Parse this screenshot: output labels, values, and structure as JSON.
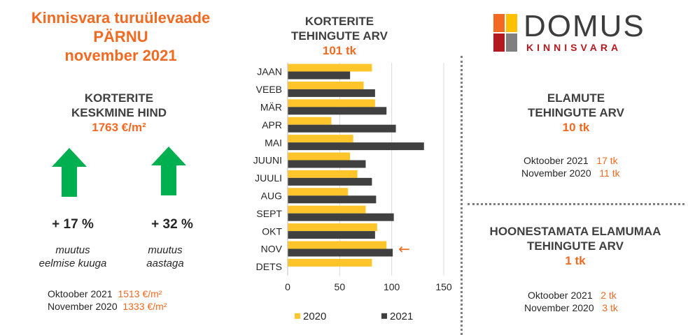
{
  "header": {
    "title_line1": "Kinnisvara turuülevaade",
    "title_line2": "PÄRNU",
    "title_line3": "november 2021"
  },
  "avg_price": {
    "title_line1": "KORTERITE",
    "title_line2": "KESKMINE HIND",
    "value": "1763 €/m²",
    "change_month": "+ 17 %",
    "change_month_note_line1": "muutus",
    "change_month_note_line2": "eelmise kuuga",
    "change_year": "+ 32 %",
    "change_year_note_line1": "muutus",
    "change_year_note_line2": "aastaga",
    "arrow_icon": "up-arrow-icon",
    "arrow_color": "#00b050",
    "prev_month_label": "Oktoober  2021",
    "prev_month_value": "1513 €/m²",
    "prev_year_label": "November  2020",
    "prev_year_value": "1333 €/m²"
  },
  "logo": {
    "name": "DOMUS",
    "sub": "KINNISVARA",
    "colors": [
      "#f26a21",
      "#ffc000",
      "#b5191f",
      "#808080"
    ]
  },
  "chart_data": {
    "type": "bar",
    "orientation": "horizontal",
    "title_line1": "KORTERITE",
    "title_line2": "TEHINGUTE ARV",
    "total": "101 tk",
    "categories": [
      "JAAN",
      "VEEB",
      "MÄR",
      "APR",
      "MAI",
      "JUUNI",
      "JUULI",
      "AUG",
      "SEPT",
      "OKT",
      "NOV",
      "DETS"
    ],
    "series": [
      {
        "name": "2020",
        "color": "#ffc52a",
        "values": [
          81,
          73,
          84,
          42,
          63,
          60,
          67,
          58,
          75,
          86,
          95,
          81
        ]
      },
      {
        "name": "2021",
        "color": "#404040",
        "values": [
          60,
          84,
          95,
          104,
          131,
          75,
          81,
          85,
          102,
          84,
          101,
          null
        ]
      }
    ],
    "xlim": [
      0,
      150
    ],
    "xticks": [
      "0",
      "50",
      "100",
      "150"
    ],
    "grid": "vertical",
    "legend": "bottom",
    "annotation": "←",
    "annotation_color": "#f26a21"
  },
  "houses": {
    "title_line1": "ELAMUTE",
    "title_line2": "TEHINGUTE ARV",
    "value": "10 tk",
    "prev_month_label": "Oktoober  2021",
    "prev_month_value": "17 tk",
    "prev_year_label": "November  2020",
    "prev_year_value": "11 tk"
  },
  "land": {
    "title_line1": "HOONESTAMATA ELAMUMAA",
    "title_line2": "TEHINGUTE ARV",
    "value": "1 tk",
    "prev_month_label": "Oktoober  2021",
    "prev_month_value": "2 tk",
    "prev_year_label": "November  2020",
    "prev_year_value": "3 tk"
  }
}
